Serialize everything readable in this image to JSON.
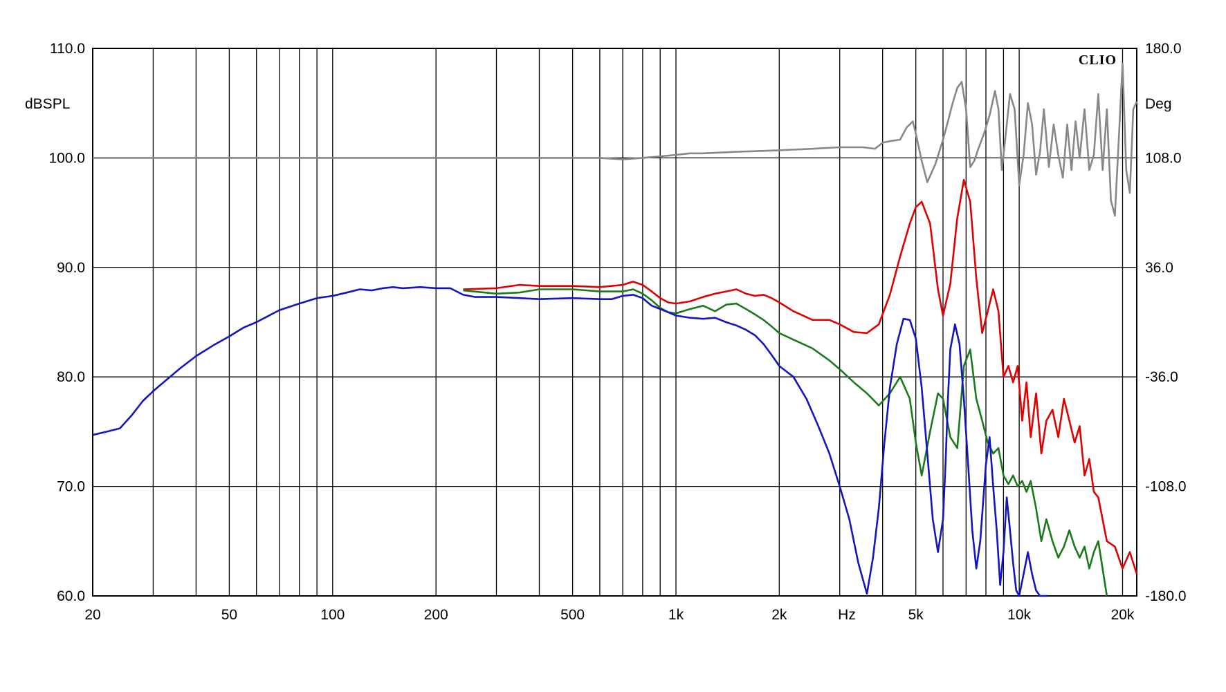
{
  "chart_data": {
    "type": "line",
    "title": "",
    "brand": "CLIO",
    "x_scale": "log",
    "xlim": [
      20,
      22000
    ],
    "xlabel": "Hz",
    "x_ticks": [
      {
        "value": 20,
        "label": "20"
      },
      {
        "value": 50,
        "label": "50"
      },
      {
        "value": 100,
        "label": "100"
      },
      {
        "value": 200,
        "label": "200"
      },
      {
        "value": 500,
        "label": "500"
      },
      {
        "value": 1000,
        "label": "1k"
      },
      {
        "value": 2000,
        "label": "2k"
      },
      {
        "value": 5000,
        "label": "5k"
      },
      {
        "value": 10000,
        "label": "10k"
      },
      {
        "value": 20000,
        "label": "20k"
      }
    ],
    "x_grid": [
      20,
      30,
      40,
      50,
      60,
      70,
      80,
      90,
      100,
      200,
      300,
      400,
      500,
      600,
      700,
      800,
      900,
      1000,
      2000,
      3000,
      4000,
      5000,
      6000,
      7000,
      8000,
      9000,
      10000,
      20000
    ],
    "ylabel_left": "dBSPL",
    "ylim_left": [
      60,
      110
    ],
    "yticks_left": [
      "60.0",
      "70.0",
      "80.0",
      "90.0",
      "100.0",
      "110.0"
    ],
    "ylabel_right": "Deg",
    "ylim_right": [
      -180,
      180
    ],
    "yticks_right": [
      "-180.0",
      "-108.0",
      "-36.0",
      "36.0",
      "108.0",
      "180.0"
    ],
    "grid": true,
    "series": [
      {
        "color": "#e00000",
        "axis": "left",
        "x": [
          240,
          300,
          350,
          400,
          500,
          600,
          700,
          750,
          800,
          850,
          900,
          950,
          1000,
          1100,
          1200,
          1300,
          1400,
          1500,
          1600,
          1700,
          1800,
          1900,
          2000,
          2200,
          2500,
          2800,
          3000,
          3300,
          3600,
          3900,
          4200,
          4500,
          4800,
          5000,
          5200,
          5500,
          5800,
          6000,
          6300,
          6600,
          6900,
          7200,
          7500,
          7800,
          8100,
          8400,
          8700,
          9000,
          9300,
          9600,
          9900,
          10200,
          10500,
          10800,
          11200,
          11600,
          12000,
          12500,
          13000,
          13500,
          14000,
          14500,
          15000,
          15500,
          16000,
          16500,
          17000,
          18000,
          19000,
          20000,
          21000,
          22000
        ],
        "y": [
          88.0,
          88.1,
          88.4,
          88.3,
          88.3,
          88.2,
          88.4,
          88.7,
          88.4,
          87.8,
          87.2,
          86.8,
          86.7,
          86.9,
          87.3,
          87.6,
          87.8,
          88.0,
          87.6,
          87.4,
          87.5,
          87.2,
          86.8,
          86.0,
          85.2,
          85.2,
          84.8,
          84.1,
          84.0,
          84.8,
          87.5,
          91.0,
          94.0,
          95.5,
          96.0,
          94.0,
          88.0,
          85.6,
          88.5,
          94.5,
          98.0,
          96.0,
          89.0,
          84.0,
          86.0,
          88.0,
          86.0,
          80.0,
          81.0,
          79.5,
          81.0,
          76.0,
          79.5,
          74.5,
          78.5,
          73.0,
          76.0,
          77.0,
          74.5,
          78.0,
          76.0,
          74.0,
          75.5,
          71.0,
          72.5,
          69.5,
          69.0,
          65.0,
          64.5,
          62.5,
          64.0,
          62.0
        ]
      },
      {
        "color": "#1a7a1a",
        "axis": "left",
        "x": [
          240,
          300,
          350,
          400,
          500,
          600,
          700,
          750,
          800,
          850,
          900,
          950,
          1000,
          1100,
          1200,
          1300,
          1400,
          1500,
          1600,
          1700,
          1800,
          1900,
          2000,
          2200,
          2500,
          2800,
          3000,
          3300,
          3600,
          3900,
          4200,
          4500,
          4800,
          5000,
          5200,
          5500,
          5800,
          6000,
          6300,
          6600,
          6900,
          7200,
          7500,
          7800,
          8100,
          8400,
          8700,
          9000,
          9300,
          9600,
          9900,
          10200,
          10500,
          10800,
          11200,
          11600,
          12000,
          12500,
          13000,
          13500,
          14000,
          14500,
          15000,
          15500,
          16000,
          16500,
          17000,
          18000
        ],
        "y": [
          87.9,
          87.6,
          87.7,
          88.0,
          88.0,
          87.8,
          87.8,
          88.0,
          87.6,
          87.0,
          86.3,
          85.9,
          85.8,
          86.2,
          86.5,
          86.0,
          86.6,
          86.7,
          86.2,
          85.7,
          85.2,
          84.6,
          84.0,
          83.4,
          82.6,
          81.5,
          80.7,
          79.5,
          78.5,
          77.4,
          78.5,
          80.0,
          78.0,
          74.0,
          71.0,
          75.0,
          78.5,
          78.0,
          74.5,
          73.5,
          81.0,
          82.5,
          78.0,
          76.0,
          74.0,
          73.0,
          73.5,
          71.0,
          70.2,
          71.0,
          70.0,
          70.5,
          69.5,
          70.5,
          68.0,
          65.0,
          67.0,
          65.0,
          63.5,
          64.5,
          66.0,
          64.5,
          63.5,
          64.5,
          62.5,
          64.0,
          65.0,
          60.0
        ]
      },
      {
        "color": "#1515c0",
        "axis": "left",
        "x": [
          20,
          22,
          24,
          26,
          28,
          30,
          33,
          36,
          40,
          45,
          50,
          55,
          60,
          70,
          80,
          90,
          100,
          110,
          120,
          130,
          140,
          150,
          160,
          180,
          200,
          220,
          240,
          260,
          300,
          350,
          400,
          500,
          600,
          650,
          700,
          750,
          800,
          850,
          900,
          950,
          1000,
          1100,
          1200,
          1300,
          1400,
          1500,
          1600,
          1700,
          1800,
          1900,
          2000,
          2200,
          2400,
          2600,
          2800,
          3000,
          3200,
          3400,
          3600,
          3750,
          3900,
          4050,
          4200,
          4400,
          4600,
          4800,
          5000,
          5200,
          5400,
          5600,
          5800,
          6000,
          6100,
          6200,
          6300,
          6500,
          6700,
          6900,
          7100,
          7300,
          7500,
          7700,
          8000,
          8200,
          8400,
          8600,
          8800,
          9000,
          9200,
          9400,
          9600,
          9800,
          10000,
          10300,
          10600,
          10900,
          11200,
          11500,
          11800,
          12100
        ],
        "y": [
          74.7,
          75.0,
          75.3,
          76.5,
          77.8,
          78.7,
          79.8,
          80.8,
          81.9,
          82.9,
          83.7,
          84.5,
          85.0,
          86.1,
          86.7,
          87.2,
          87.4,
          87.7,
          88.0,
          87.9,
          88.1,
          88.2,
          88.1,
          88.2,
          88.1,
          88.1,
          87.5,
          87.3,
          87.3,
          87.2,
          87.1,
          87.2,
          87.1,
          87.1,
          87.4,
          87.5,
          87.2,
          86.5,
          86.2,
          85.9,
          85.6,
          85.4,
          85.3,
          85.4,
          85.0,
          84.7,
          84.3,
          83.8,
          83.0,
          82.0,
          81.0,
          80.0,
          78.0,
          75.5,
          73.0,
          70.0,
          67.0,
          63.0,
          60.2,
          63.5,
          68.0,
          74.0,
          79.0,
          83.0,
          85.3,
          85.2,
          83.5,
          79.0,
          73.0,
          67.0,
          64.0,
          67.0,
          72.0,
          78.0,
          82.5,
          84.8,
          83.0,
          78.0,
          72.0,
          66.0,
          62.5,
          65.0,
          72.0,
          74.5,
          70.0,
          66.0,
          61.0,
          64.0,
          69.0,
          66.0,
          63.0,
          60.5,
          60.0,
          62.0,
          64.0,
          62.0,
          60.5,
          60.0,
          60.0,
          60.0
        ]
      },
      {
        "color": "#888888",
        "axis": "right",
        "x": [
          20,
          30,
          50,
          100,
          200,
          300,
          500,
          600,
          700,
          800,
          900,
          1000,
          1100,
          1200,
          1500,
          2000,
          2500,
          3000,
          3500,
          3800,
          4000,
          4200,
          4500,
          4700,
          4900,
          5000,
          5200,
          5400,
          5700,
          6000,
          6200,
          6400,
          6600,
          6800,
          7000,
          7200,
          7400,
          7600,
          7900,
          8200,
          8500,
          8700,
          8900,
          9100,
          9400,
          9700,
          10000,
          10300,
          10600,
          10900,
          11200,
          11500,
          11800,
          12200,
          12600,
          13000,
          13400,
          13800,
          14200,
          14600,
          15000,
          15500,
          16000,
          16500,
          17000,
          17500,
          18000,
          18500,
          19000,
          19500,
          20000,
          20500,
          21000,
          21500,
          22000
        ],
        "y": [
          108,
          108,
          108,
          108,
          108,
          108,
          108,
          108,
          107,
          108,
          109,
          110,
          111,
          111,
          112,
          113,
          114,
          115,
          115,
          114,
          118,
          119,
          120,
          128,
          132,
          124,
          106,
          92,
          104,
          120,
          132,
          144,
          154,
          158,
          140,
          102,
          106,
          114,
          124,
          136,
          152,
          140,
          100,
          120,
          150,
          140,
          90,
          110,
          144,
          130,
          97,
          112,
          140,
          102,
          130,
          110,
          95,
          130,
          100,
          132,
          108,
          140,
          100,
          110,
          150,
          100,
          140,
          80,
          70,
          120,
          170,
          100,
          85,
          140,
          145
        ]
      }
    ]
  }
}
